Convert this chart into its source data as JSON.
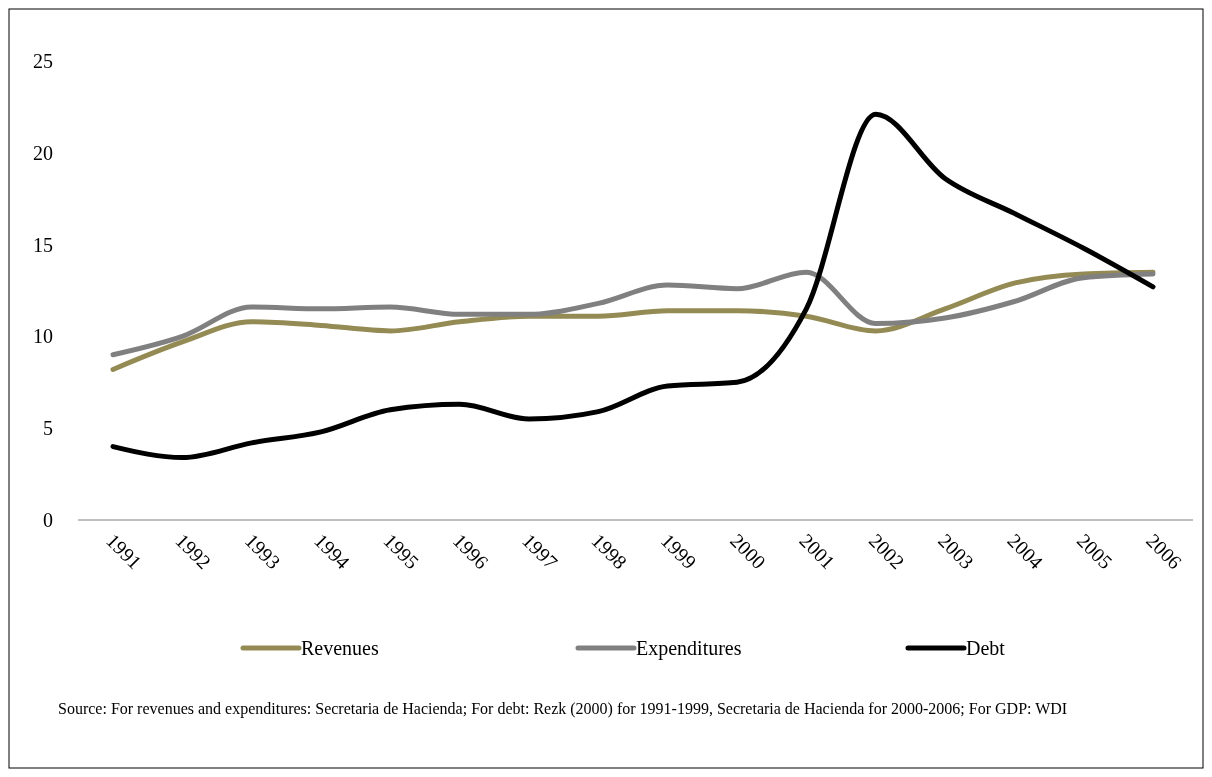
{
  "chart_data": {
    "type": "line",
    "categories": [
      "1991",
      "1992",
      "1993",
      "1994",
      "1995",
      "1996",
      "1997",
      "1998",
      "1999",
      "2000",
      "2001",
      "2002",
      "2003",
      "2004",
      "2005",
      "2006"
    ],
    "series": [
      {
        "name": "Revenues",
        "color": "#948a54",
        "values": [
          8.2,
          9.7,
          10.8,
          10.6,
          10.3,
          10.8,
          11.1,
          11.1,
          11.4,
          11.4,
          11.1,
          10.3,
          11.5,
          12.9,
          13.4,
          13.5
        ]
      },
      {
        "name": "Expenditures",
        "color": "#808080",
        "values": [
          9.0,
          10.0,
          11.6,
          11.5,
          11.6,
          11.2,
          11.2,
          11.8,
          12.8,
          12.6,
          13.5,
          10.7,
          11.0,
          11.9,
          13.2,
          13.4
        ]
      },
      {
        "name": "Debt",
        "color": "#000000",
        "values": [
          4.0,
          3.4,
          4.2,
          4.8,
          6.0,
          6.3,
          5.5,
          5.9,
          7.3,
          7.5,
          11.5,
          22.1,
          18.6,
          16.7,
          14.8,
          12.7
        ]
      }
    ],
    "ylim": [
      0,
      25
    ],
    "yticks": [
      0,
      5,
      10,
      15,
      20,
      25
    ],
    "grid": false,
    "legend": "bottom",
    "marker": "none",
    "line_style": "solid",
    "annotations": [
      "Source:  For revenues and expenditures:  Secretaria de Hacienda; For debt: Rezk (2000) for 1991-1999, Secretaria de Hacienda for 2000-2006; For GDP: WDI"
    ]
  }
}
